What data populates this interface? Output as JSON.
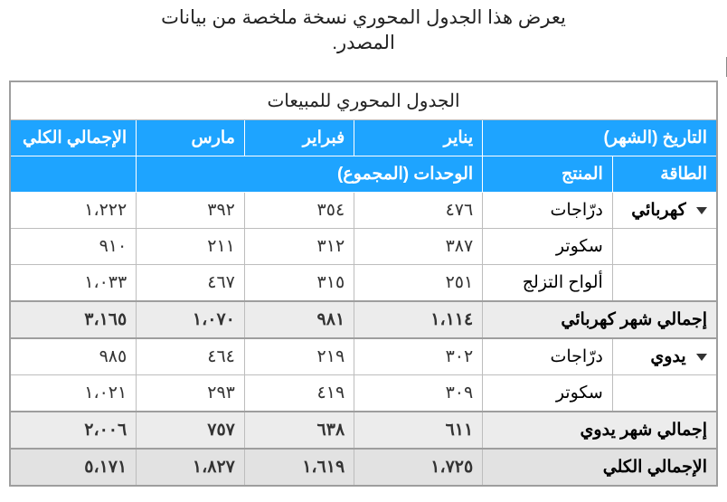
{
  "caption": "يعرض هذا الجدول المحوري نسخة ملخصة من بيانات المصدر.",
  "table": {
    "title": "الجدول المحوري للمبيعات",
    "headers": {
      "date_month": "التاريخ (الشهر)",
      "jan": "يناير",
      "feb": "فبراير",
      "mar": "مارس",
      "grand_total": "الإجمالي الكلي",
      "energy": "الطاقة",
      "product": "المنتج",
      "units_sum": "الوحدات (المجموع)"
    },
    "groups": [
      {
        "energy": "كهربائي",
        "subtotal_label": "إجمالي شهر كهربائي",
        "rows": [
          {
            "product": "درّاجات",
            "m1": "٤٧٦",
            "m2": "٣٥٤",
            "m3": "٣٩٢",
            "total": "١،٢٢٢"
          },
          {
            "product": "سكوتر",
            "m1": "٣٨٧",
            "m2": "٣١٢",
            "m3": "٢١١",
            "total": "٩١٠"
          },
          {
            "product": "ألواح التزلج",
            "m1": "٢٥١",
            "m2": "٣١٥",
            "m3": "٤٦٧",
            "total": "١،٠٣٣"
          }
        ],
        "subtotal": {
          "m1": "١،١١٤",
          "m2": "٩٨١",
          "m3": "١،٠٧٠",
          "total": "٣،١٦٥"
        }
      },
      {
        "energy": "يدوي",
        "subtotal_label": "إجمالي شهر يدوي",
        "rows": [
          {
            "product": "درّاجات",
            "m1": "٣٠٢",
            "m2": "٢١٩",
            "m3": "٤٦٤",
            "total": "٩٨٥"
          },
          {
            "product": "سكوتر",
            "m1": "٣٠٩",
            "m2": "٤١٩",
            "m3": "٢٩٣",
            "total": "١،٠٢١"
          }
        ],
        "subtotal": {
          "m1": "٦١١",
          "m2": "٦٣٨",
          "m3": "٧٥٧",
          "total": "٢،٠٠٦"
        }
      }
    ],
    "grand_total_label": "الإجمالي الكلي",
    "grand": {
      "m1": "١،٧٢٥",
      "m2": "١،٦١٩",
      "m3": "١،٨٢٧",
      "total": "٥،١٧١"
    }
  },
  "colors": {
    "header_bg": "#1ea4ff",
    "header_fg": "#ffffff",
    "subtotal_bg": "#ececec",
    "grand_bg": "#e2e2e2",
    "border": "#9e9e9e"
  }
}
